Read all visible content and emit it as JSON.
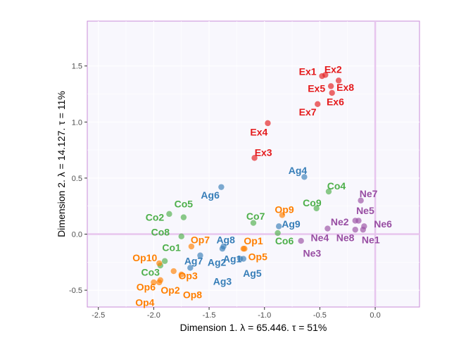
{
  "chart_data": {
    "type": "scatter",
    "xlabel": "Dimension 1.   λ = 65.446.  τ = 51%",
    "ylabel": "Dimension 2.   λ = 14.127.  τ = 11%",
    "xlim": [
      -2.6,
      0.4
    ],
    "ylim": [
      -0.65,
      1.9
    ],
    "x_ticks": [
      -2.5,
      -2.0,
      -1.5,
      -1.0,
      -0.5,
      0.0
    ],
    "x_tick_labels": [
      "-2.5",
      "-2.0",
      "-1.5",
      "-1.0",
      "-0.5",
      "0.0"
    ],
    "y_ticks": [
      -0.5,
      0.0,
      0.5,
      1.0,
      1.5
    ],
    "y_tick_labels": [
      "-0.5",
      "0.0",
      "0.5",
      "1.0",
      "1.5"
    ],
    "grid": true,
    "reference_lines": {
      "x": 0,
      "y": 0
    },
    "series": [
      {
        "color": "#377EB8",
        "points": [
          {
            "label": "Ag1",
            "x": -1.22,
            "y": -0.22,
            "lx": -1.29,
            "ly": -0.22
          },
          {
            "label": "Ag2",
            "x": -1.38,
            "y": -0.13,
            "lx": -1.43,
            "ly": -0.25
          },
          {
            "label": "Ag3",
            "x": -1.67,
            "y": -0.3,
            "lx": -1.38,
            "ly": -0.42
          },
          {
            "label": "Ag4",
            "x": -0.64,
            "y": 0.51,
            "lx": -0.7,
            "ly": 0.57
          },
          {
            "label": "Ag5",
            "x": -1.19,
            "y": -0.22,
            "lx": -1.11,
            "ly": -0.35
          },
          {
            "label": "Ag6",
            "x": -1.39,
            "y": 0.42,
            "lx": -1.49,
            "ly": 0.35
          },
          {
            "label": "Ag7",
            "x": -1.58,
            "y": -0.19,
            "lx": -1.64,
            "ly": -0.24
          },
          {
            "label": "Ag8",
            "x": -1.37,
            "y": -0.11,
            "lx": -1.35,
            "ly": -0.05
          },
          {
            "label": "Ag9",
            "x": -0.87,
            "y": 0.07,
            "lx": -0.76,
            "ly": 0.09
          }
        ]
      },
      {
        "color": "#4DAF4A",
        "points": [
          {
            "label": "Co1",
            "x": -1.75,
            "y": -0.02,
            "lx": -1.84,
            "ly": -0.12
          },
          {
            "label": "Co2",
            "x": -1.86,
            "y": 0.18,
            "lx": -1.99,
            "ly": 0.15
          },
          {
            "label": "Co3",
            "x": -1.94,
            "y": -0.28,
            "lx": -2.03,
            "ly": -0.34
          },
          {
            "label": "Co4",
            "x": -0.42,
            "y": 0.38,
            "lx": -0.35,
            "ly": 0.43
          },
          {
            "label": "Co5",
            "x": -1.73,
            "y": 0.15,
            "lx": -1.73,
            "ly": 0.27
          },
          {
            "label": "Co6",
            "x": -0.88,
            "y": 0.01,
            "lx": -0.82,
            "ly": -0.06
          },
          {
            "label": "Co7",
            "x": -1.1,
            "y": 0.1,
            "lx": -1.08,
            "ly": 0.16
          },
          {
            "label": "Co8",
            "x": -1.9,
            "y": -0.24,
            "lx": -1.94,
            "ly": 0.02
          },
          {
            "label": "Co9",
            "x": -0.53,
            "y": 0.23,
            "lx": -0.57,
            "ly": 0.28
          }
        ]
      },
      {
        "color": "#E41A1C",
        "points": [
          {
            "label": "Ex1",
            "x": -0.48,
            "y": 1.41,
            "lx": -0.61,
            "ly": 1.45
          },
          {
            "label": "Ex2",
            "x": -0.45,
            "y": 1.42,
            "lx": -0.38,
            "ly": 1.47
          },
          {
            "label": "Ex3",
            "x": -1.09,
            "y": 0.68,
            "lx": -1.01,
            "ly": 0.73
          },
          {
            "label": "Ex4",
            "x": -0.97,
            "y": 0.99,
            "lx": -1.05,
            "ly": 0.91
          },
          {
            "label": "Ex5",
            "x": -0.4,
            "y": 1.32,
            "lx": -0.53,
            "ly": 1.3
          },
          {
            "label": "Ex6",
            "x": -0.39,
            "y": 1.26,
            "lx": -0.36,
            "ly": 1.18
          },
          {
            "label": "Ex7",
            "x": -0.52,
            "y": 1.16,
            "lx": -0.61,
            "ly": 1.09
          },
          {
            "label": "Ex8",
            "x": -0.33,
            "y": 1.37,
            "lx": -0.27,
            "ly": 1.31
          }
        ]
      },
      {
        "color": "#984EA3",
        "points": [
          {
            "label": "Ne1",
            "x": -0.11,
            "y": 0.04,
            "lx": -0.04,
            "ly": -0.05
          },
          {
            "label": "Ne2",
            "x": -0.18,
            "y": 0.12,
            "lx": -0.32,
            "ly": 0.11
          },
          {
            "label": "Ne3",
            "x": -0.67,
            "y": -0.06,
            "lx": -0.57,
            "ly": -0.17
          },
          {
            "label": "Ne4",
            "x": -0.43,
            "y": 0.05,
            "lx": -0.5,
            "ly": -0.03
          },
          {
            "label": "Ne5",
            "x": -0.15,
            "y": 0.12,
            "lx": -0.09,
            "ly": 0.21
          },
          {
            "label": "Ne6",
            "x": -0.1,
            "y": 0.07,
            "lx": 0.07,
            "ly": 0.09
          },
          {
            "label": "Ne7",
            "x": -0.13,
            "y": 0.3,
            "lx": -0.06,
            "ly": 0.36
          },
          {
            "label": "Ne8",
            "x": -0.18,
            "y": 0.04,
            "lx": -0.27,
            "ly": -0.03
          }
        ]
      },
      {
        "color": "#FF7F00",
        "points": [
          {
            "label": "Op1",
            "x": -1.19,
            "y": -0.13,
            "lx": -1.1,
            "ly": -0.06
          },
          {
            "label": "Op2",
            "x": -1.95,
            "y": -0.43,
            "lx": -1.85,
            "ly": -0.5
          },
          {
            "label": "Op3",
            "x": -1.82,
            "y": -0.33,
            "lx": -1.69,
            "ly": -0.37
          },
          {
            "label": "Op4",
            "x": -1.94,
            "y": -0.41,
            "lx": -2.08,
            "ly": -0.61
          },
          {
            "label": "Op5",
            "x": -1.18,
            "y": -0.13,
            "lx": -1.06,
            "ly": -0.2
          },
          {
            "label": "Op6",
            "x": -2.0,
            "y": -0.43,
            "lx": -2.07,
            "ly": -0.47
          },
          {
            "label": "Op7",
            "x": -1.66,
            "y": -0.11,
            "lx": -1.58,
            "ly": -0.05
          },
          {
            "label": "Op8",
            "x": -1.75,
            "y": -0.36,
            "lx": -1.65,
            "ly": -0.54
          },
          {
            "label": "Op9",
            "x": -0.84,
            "y": 0.17,
            "lx": -0.82,
            "ly": 0.22
          },
          {
            "label": "Op10",
            "x": -1.95,
            "y": -0.26,
            "lx": -2.08,
            "ly": -0.21
          }
        ]
      }
    ]
  }
}
